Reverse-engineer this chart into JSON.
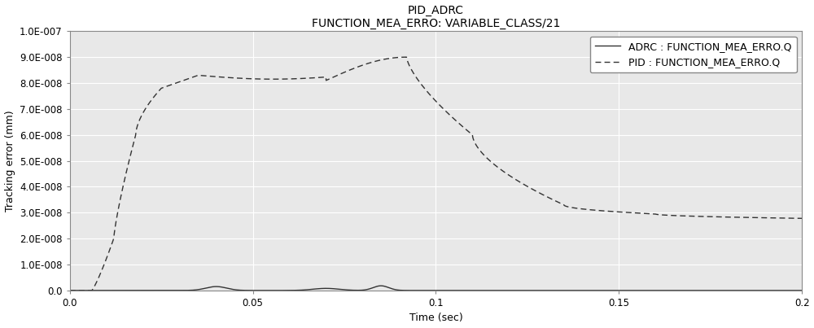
{
  "title_line1": "PID_ADRC",
  "title_line2": "FUNCTION_MEA_ERRO: VARIABLE_CLASS/21",
  "xlabel": "Time (sec)",
  "ylabel": "Tracking error (mm)",
  "xlim": [
    0.0,
    0.2
  ],
  "ylim": [
    0.0,
    1e-07
  ],
  "yticks": [
    0.0,
    1e-08,
    2e-08,
    3e-08,
    4e-08,
    5e-08,
    6e-08,
    7e-08,
    8e-08,
    9e-08,
    1e-07
  ],
  "ytick_labels": [
    "0.0",
    "1.0E-008",
    "2.0E-008",
    "3.0E-008",
    "4.0E-008",
    "5.0E-008",
    "6.0E-008",
    "7.0E-008",
    "8.0E-008",
    "9.0E-008",
    "1.0E-007"
  ],
  "xticks": [
    0.0,
    0.05,
    0.1,
    0.15,
    0.2
  ],
  "xtick_labels": [
    "0.0",
    "0.05",
    "0.1",
    "0.15",
    "0.2"
  ],
  "adrc_label": "ADRC : FUNCTION_MEA_ERRO.Q",
  "pid_label": "PID : FUNCTION_MEA_ERRO.Q",
  "adrc_color": "#333333",
  "pid_color": "#333333",
  "plot_bg_color": "#e8e8e8",
  "fig_bg_color": "#ffffff",
  "grid_color": "#ffffff",
  "legend_bg": "#ffffff",
  "title_fontsize": 10,
  "axis_label_fontsize": 9,
  "tick_fontsize": 8.5,
  "legend_fontsize": 9
}
